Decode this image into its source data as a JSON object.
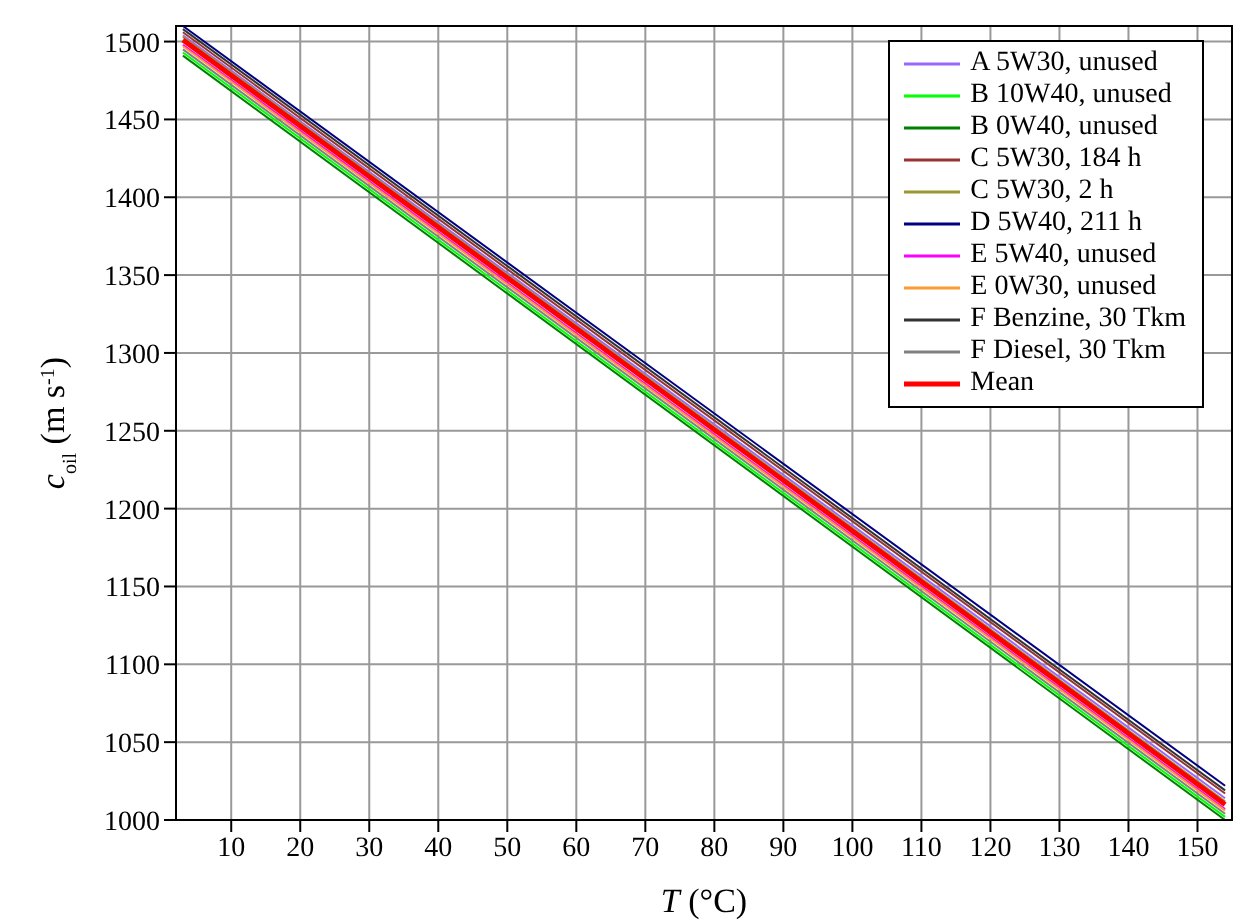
{
  "chart_data": {
    "type": "line",
    "xlabel": "T (°C)",
    "ylabel": "c$_{oil}$ (m s$^{-1}$)",
    "x": [
      3,
      154
    ],
    "series": [
      {
        "name": "A 5W30, unused",
        "color": "#9966ff",
        "values": [
          1504,
          1014
        ]
      },
      {
        "name": "B 10W40, unused",
        "color": "#00ff00",
        "values": [
          1493,
          1002
        ]
      },
      {
        "name": "B 0W40, unused",
        "color": "#008000",
        "values": [
          1491,
          1000
        ]
      },
      {
        "name": "C 5W30, 184 h",
        "color": "#993333",
        "values": [
          1506,
          1017
        ]
      },
      {
        "name": "C 5W30, 2 h",
        "color": "#999933",
        "values": [
          1503,
          1012
        ]
      },
      {
        "name": "D 5W40, 211 h",
        "color": "#000080",
        "values": [
          1510,
          1022
        ]
      },
      {
        "name": "E 5W40, unused",
        "color": "#ff00ff",
        "values": [
          1498,
          1007
        ]
      },
      {
        "name": "E 0W30, unused",
        "color": "#ff9933",
        "values": [
          1497,
          1006
        ]
      },
      {
        "name": "F Benzine, 30 Tkm",
        "color": "#333333",
        "values": [
          1508,
          1019
        ]
      },
      {
        "name": "F Diesel, 30 Tkm",
        "color": "#808080",
        "values": [
          1495,
          1004
        ]
      },
      {
        "name": "Mean",
        "color": "#ff0000",
        "values": [
          1501,
          1010
        ]
      }
    ],
    "xlim": [
      2,
      155
    ],
    "xticks": [
      10,
      20,
      30,
      40,
      50,
      60,
      70,
      80,
      90,
      100,
      110,
      120,
      130,
      140,
      150
    ],
    "ylim": [
      1000,
      1510
    ],
    "yticks": [
      1000,
      1050,
      1100,
      1150,
      1200,
      1250,
      1300,
      1350,
      1400,
      1450,
      1500
    ],
    "grid": true,
    "legend": "top right"
  }
}
